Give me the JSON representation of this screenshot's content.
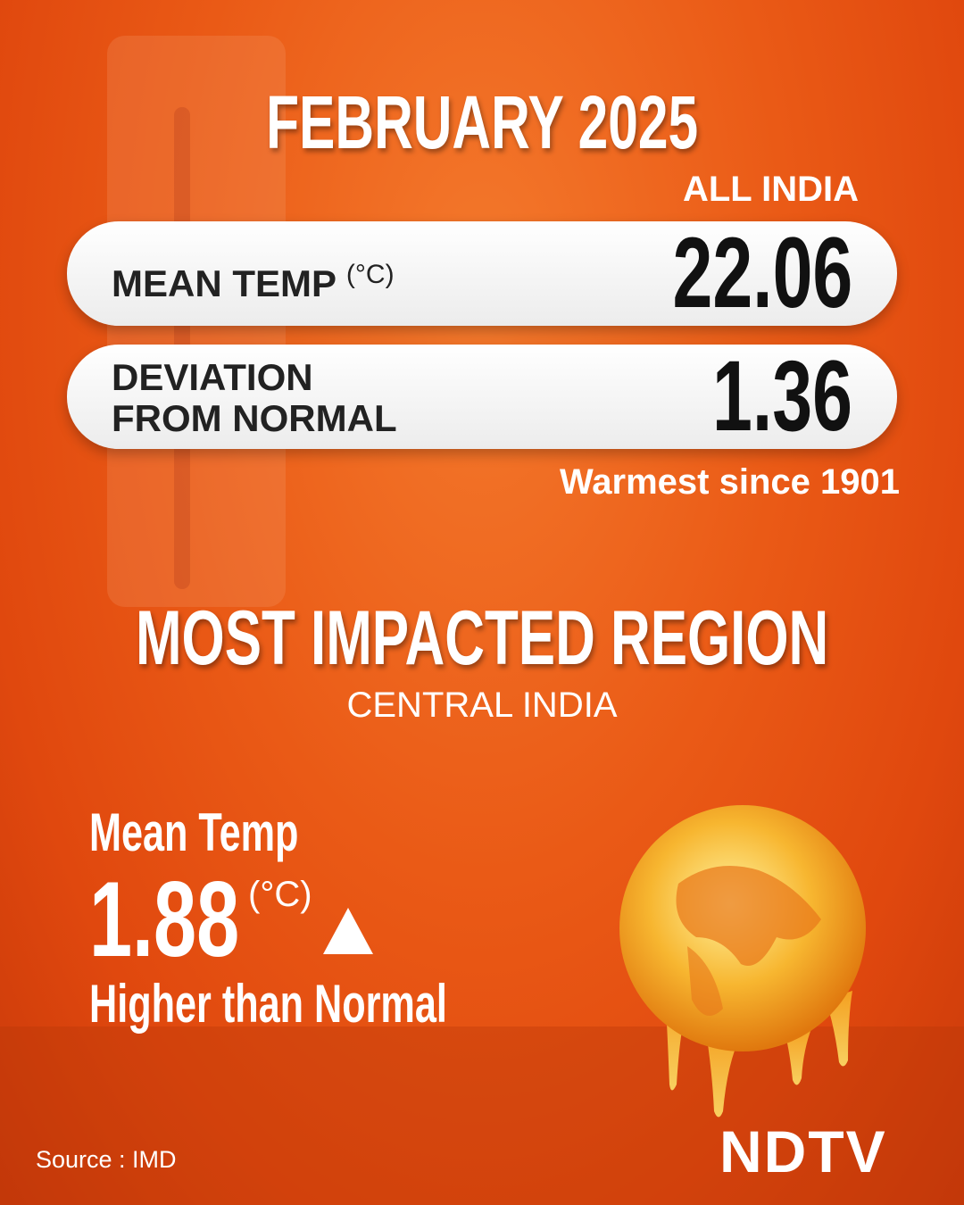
{
  "header": {
    "title": "FEBRUARY 2025",
    "scope": "ALL INDIA"
  },
  "stats": [
    {
      "label": "MEAN TEMP",
      "unit": "(°C)",
      "value": "22.06"
    },
    {
      "label": "DEVIATION FROM NORMAL",
      "value": "1.36"
    }
  ],
  "note": "Warmest since 1901",
  "region": {
    "heading": "MOST IMPACTED REGION",
    "name": "CENTRAL INDIA",
    "metric": "Mean Temp",
    "value": "1.88",
    "unit": "(°C)",
    "comparison": "Higher than Normal"
  },
  "footer": {
    "source": "Source : IMD",
    "brand": "NDTV"
  }
}
